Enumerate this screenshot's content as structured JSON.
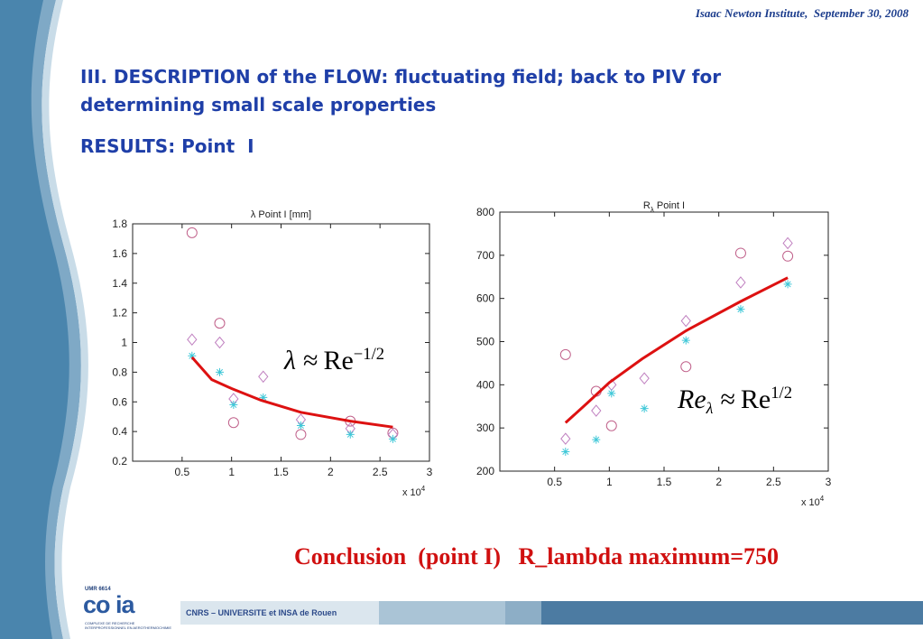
{
  "header": {
    "text": "Isaac Newton Institute,  September 30, 2008"
  },
  "slide": {
    "title": "III. DESCRIPTION of the FLOW: fluctuating field;  back to PIV for determining small scale properties",
    "subtitle": "RESULTS: Point  I",
    "conclusion": "Conclusion  (point I)   R_lambda maximum=750"
  },
  "footer": {
    "text": "CNRS – UNIVERSITE et INSA de Rouen",
    "logo_text": "co ia",
    "logo_umr": "UMR 6614",
    "logo_sub": "COMPLEXE DE RECHERCHE INTERPROFESSIONNEL EN AEROTHERMOCHIMIE"
  },
  "colors": {
    "accent_blue": "#1f3fa8",
    "conclusion_red": "#d01010",
    "fit_red": "#dd1111",
    "circle": "#c0608a",
    "diamond": "#c080c0",
    "star": "#40c8d8",
    "sidebar": "#4a85ad"
  },
  "chart_data": [
    {
      "type": "scatter",
      "title": "λ Point I [mm]",
      "xlabel": "",
      "ylabel": "",
      "x_multiplier_label": "x 10",
      "x_multiplier_exp": "4",
      "xlim": [
        0,
        3
      ],
      "ylim": [
        0.2,
        1.8
      ],
      "x_ticks": [
        0.5,
        1,
        1.5,
        2,
        2.5,
        3
      ],
      "x_tick_labels": [
        "0.5",
        "1",
        "1.5",
        "2",
        "2.5",
        "3"
      ],
      "y_ticks": [
        0.2,
        0.4,
        0.6,
        0.8,
        1,
        1.2,
        1.4,
        1.6,
        1.8
      ],
      "y_tick_labels": [
        "0.2",
        "0.4",
        "0.6",
        "0.8",
        "1",
        "1.2",
        "1.4",
        "1.6",
        "1.8"
      ],
      "grid": false,
      "series": [
        {
          "marker": "circle",
          "x": [
            0.6,
            0.88,
            1.02,
            1.7,
            2.2,
            2.63
          ],
          "y": [
            1.74,
            1.13,
            0.46,
            0.38,
            0.47,
            0.39
          ]
        },
        {
          "marker": "diamond",
          "x": [
            0.6,
            0.88,
            1.02,
            1.32,
            1.7,
            2.2,
            2.63
          ],
          "y": [
            1.02,
            1.0,
            0.62,
            0.77,
            0.48,
            0.42,
            0.38
          ]
        },
        {
          "marker": "star",
          "x": [
            0.6,
            0.88,
            1.02,
            1.32,
            1.7,
            2.2,
            2.63
          ],
          "y": [
            0.91,
            0.8,
            0.58,
            0.63,
            0.44,
            0.38,
            0.35
          ]
        },
        {
          "marker": "line",
          "x": [
            0.6,
            0.8,
            1.0,
            1.3,
            1.7,
            2.2,
            2.63
          ],
          "y": [
            0.9,
            0.75,
            0.69,
            0.61,
            0.53,
            0.47,
            0.43
          ]
        }
      ],
      "annotation": {
        "lhs": "λ",
        "rel": "≈",
        "rhs": "Re",
        "sup": "−1/2"
      }
    },
    {
      "type": "scatter",
      "title": "R",
      "title_sub": "λ",
      "title_rest": " Point I",
      "xlabel": "",
      "ylabel": "",
      "x_multiplier_label": "x 10",
      "x_multiplier_exp": "4",
      "xlim": [
        0,
        3
      ],
      "ylim": [
        200,
        800
      ],
      "x_ticks": [
        0.5,
        1,
        1.5,
        2,
        2.5,
        3
      ],
      "x_tick_labels": [
        "0.5",
        "1",
        "1.5",
        "2",
        "2.5",
        "3"
      ],
      "y_ticks": [
        200,
        300,
        400,
        500,
        600,
        700,
        800
      ],
      "y_tick_labels": [
        "200",
        "300",
        "400",
        "500",
        "600",
        "700",
        "800"
      ],
      "grid": false,
      "series": [
        {
          "marker": "circle",
          "x": [
            0.6,
            0.88,
            1.02,
            1.7,
            2.2,
            2.63
          ],
          "y": [
            470,
            385,
            305,
            442,
            705,
            698
          ]
        },
        {
          "marker": "diamond",
          "x": [
            0.6,
            0.88,
            1.02,
            1.32,
            1.7,
            2.2,
            2.63
          ],
          "y": [
            275,
            340,
            400,
            415,
            548,
            637,
            728
          ]
        },
        {
          "marker": "star",
          "x": [
            0.6,
            0.88,
            1.02,
            1.32,
            1.7,
            2.2,
            2.63
          ],
          "y": [
            245,
            273,
            380,
            345,
            503,
            575,
            633
          ]
        },
        {
          "marker": "line",
          "x": [
            0.6,
            0.8,
            1.0,
            1.3,
            1.7,
            2.2,
            2.63
          ],
          "y": [
            312,
            358,
            405,
            460,
            525,
            593,
            648
          ]
        }
      ],
      "annotation": {
        "lhs": "Re",
        "lhs_sub": "λ",
        "rel": "≈",
        "rhs": "Re",
        "sup": "1/2"
      }
    }
  ]
}
